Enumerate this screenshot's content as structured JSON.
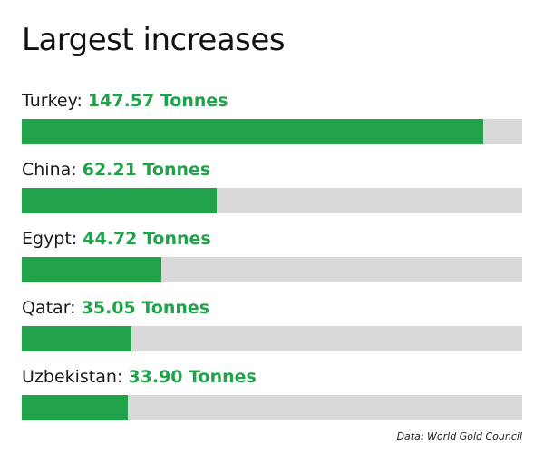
{
  "chart_data": {
    "type": "bar",
    "orientation": "horizontal",
    "title": "Largest increases",
    "categories": [
      "Turkey",
      "China",
      "Egypt",
      "Qatar",
      "Uzbekistan"
    ],
    "values": [
      147.57,
      62.21,
      44.72,
      35.05,
      33.9
    ],
    "value_labels": [
      "147.57 Tonnes",
      "62.21 Tonnes",
      "44.72 Tonnes",
      "35.05 Tonnes",
      "33.90 Tonnes"
    ],
    "unit": "Tonnes",
    "xlim": [
      0,
      160
    ],
    "source": "Data: World Gold Council",
    "colors": {
      "bar": "#22a34b",
      "track": "#d9d9d9",
      "value_text": "#22a34b"
    }
  }
}
